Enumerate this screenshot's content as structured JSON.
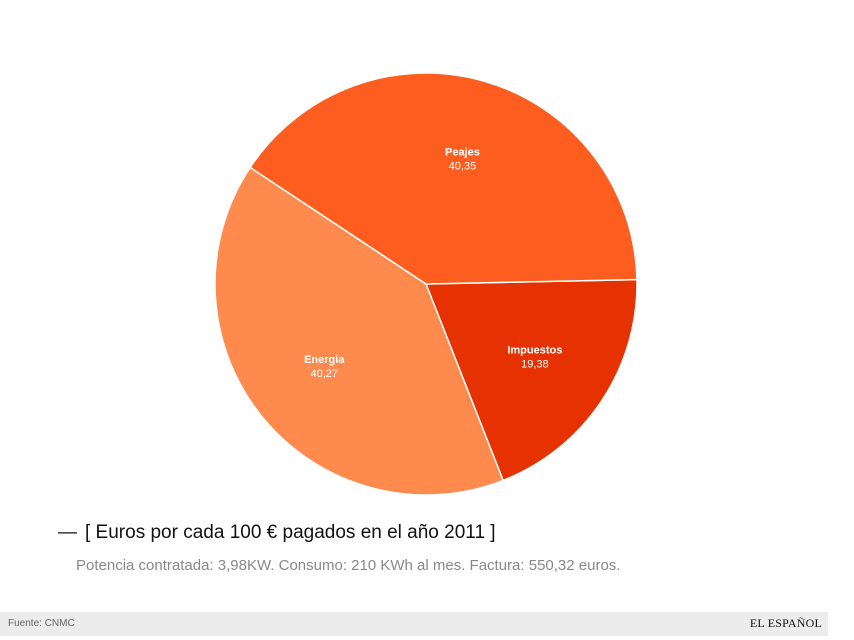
{
  "chart_data": {
    "type": "pie",
    "title": "[ Euros por cada 100 € pagados en el año 2011 ]",
    "subtitle": "Potencia contratada: 3,98KW. Consumo: 210 KWh al mes. Factura: 550,32 euros.",
    "slices": [
      {
        "name": "Impuestos",
        "value": 19.38,
        "value_label": "19,38",
        "color": "#e63200"
      },
      {
        "name": "Energía",
        "value": 40.27,
        "value_label": "40,27",
        "color": "#fe8a4e"
      },
      {
        "name": "Peajes",
        "value": 40.35,
        "value_label": "40,35",
        "color": "#fd5e1f"
      }
    ]
  },
  "footer": {
    "source": "Fuente: CNMC",
    "brand": "EL ESPAÑOL"
  },
  "heading_dash": "—"
}
